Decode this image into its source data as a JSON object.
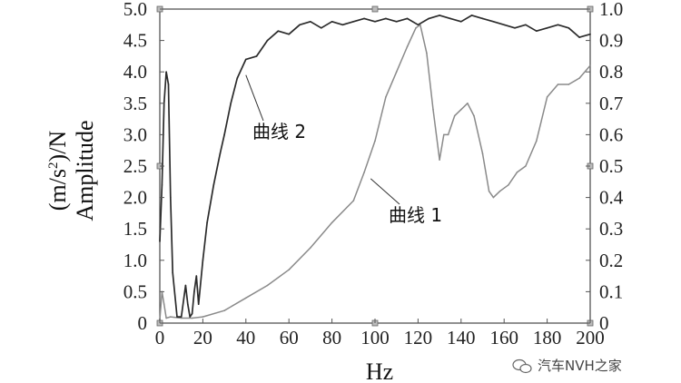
{
  "chart_data": {
    "type": "line",
    "title": "",
    "xlabel": "Hz",
    "ylabel_line1": "(m/s",
    "ylabel_sup": "2",
    "ylabel_line1_end": ")/N",
    "ylabel_line2": "Amplitude",
    "xlim": [
      0,
      200
    ],
    "ylim_left": [
      0,
      5
    ],
    "ylim_right": [
      0,
      1
    ],
    "grid": false,
    "x_ticks": [
      "0",
      "20",
      "40",
      "60",
      "80",
      "100",
      "120",
      "140",
      "160",
      "180",
      "200"
    ],
    "y_left_ticks": [
      "0",
      "0.5",
      "1.0",
      "1.5",
      "2.0",
      "2.5",
      "3.0",
      "3.5",
      "4.0",
      "4.5",
      "5.0"
    ],
    "y_right_ticks": [
      "0",
      "0.1",
      "0.2",
      "0.3",
      "0.4",
      "0.5",
      "0.6",
      "0.7",
      "0.8",
      "0.9",
      "1.0"
    ],
    "series": [
      {
        "name": "曲线 1",
        "axis": "left",
        "color": "#8a8a8a",
        "x": [
          0,
          1,
          2,
          3,
          5,
          10,
          15,
          20,
          30,
          40,
          50,
          60,
          70,
          80,
          90,
          95,
          100,
          105,
          110,
          115,
          119,
          121,
          124,
          127,
          130,
          132,
          134,
          137,
          140,
          143,
          146,
          150,
          153,
          155,
          158,
          162,
          166,
          170,
          175,
          180,
          185,
          190,
          195,
          200
        ],
        "values": [
          0.05,
          0.5,
          0.3,
          0.08,
          0.1,
          0.08,
          0.08,
          0.1,
          0.2,
          0.4,
          0.6,
          0.85,
          1.2,
          1.6,
          1.95,
          2.4,
          2.9,
          3.6,
          4.0,
          4.4,
          4.7,
          4.75,
          4.3,
          3.4,
          2.6,
          3.0,
          3.0,
          3.3,
          3.4,
          3.5,
          3.3,
          2.7,
          2.1,
          2.0,
          2.1,
          2.2,
          2.4,
          2.5,
          2.9,
          3.6,
          3.8,
          3.8,
          3.9,
          4.1
        ]
      },
      {
        "name": "曲线 2",
        "axis": "left",
        "color": "#2b2b2b",
        "x": [
          0,
          1,
          2,
          3,
          4,
          5,
          6,
          8,
          10,
          12,
          13,
          14,
          15,
          16,
          17,
          18,
          20,
          22,
          25,
          28,
          30,
          33,
          36,
          40,
          45,
          50,
          55,
          60,
          65,
          70,
          75,
          80,
          85,
          90,
          95,
          100,
          105,
          110,
          115,
          120,
          125,
          130,
          135,
          140,
          145,
          150,
          155,
          160,
          165,
          170,
          175,
          180,
          185,
          190,
          195,
          200
        ],
        "values": [
          1.3,
          2.2,
          3.5,
          4.0,
          3.8,
          2.0,
          0.8,
          0.1,
          0.1,
          0.6,
          0.3,
          0.1,
          0.15,
          0.5,
          0.75,
          0.3,
          1.0,
          1.6,
          2.2,
          2.7,
          3.0,
          3.5,
          3.9,
          4.2,
          4.25,
          4.5,
          4.65,
          4.6,
          4.75,
          4.8,
          4.7,
          4.8,
          4.75,
          4.8,
          4.85,
          4.8,
          4.85,
          4.8,
          4.85,
          4.75,
          4.85,
          4.9,
          4.85,
          4.8,
          4.9,
          4.85,
          4.8,
          4.75,
          4.7,
          4.75,
          4.65,
          4.7,
          4.75,
          4.7,
          4.55,
          4.6
        ]
      }
    ],
    "annotations": [
      {
        "text": "曲线 2",
        "series": "曲线 2",
        "point": [
          40,
          3.95
        ]
      },
      {
        "text": "曲线 1",
        "series": "曲线 1",
        "point": [
          98,
          2.3
        ]
      }
    ]
  },
  "watermark": {
    "icon": "wechat-icon",
    "text": "汽车NVH之家"
  }
}
